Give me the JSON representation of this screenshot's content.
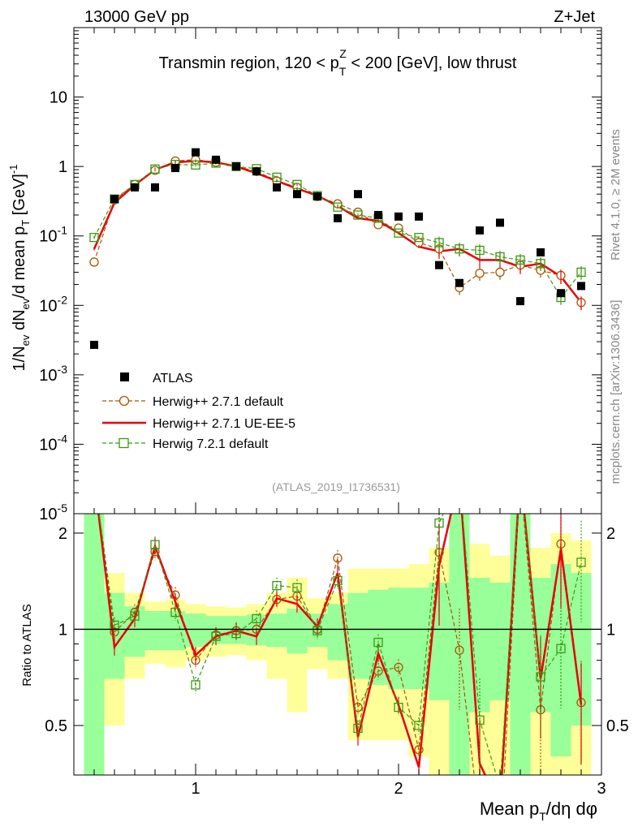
{
  "header": {
    "energy": "13000 GeV pp",
    "process": "Z+Jet"
  },
  "side_labels": {
    "rivet": "Rivet 4.1.0, ≥ 2M events",
    "source": "mcplots.cern.ch [arXiv:1306.3436]"
  },
  "chart_data": [
    {
      "type": "scatter",
      "title": "Transmin region, 120 < p_T^Z < 200 [GeV], low thrust",
      "title_parts": {
        "pre": "Transmin region, 120 < p",
        "sub": "T",
        "sup": "Z",
        "post": " < 200 [GeV], low thrust"
      },
      "ylabel": "1/N_ev dN_ev/d mean p_T [GeV]^-1",
      "yscale": "log",
      "ylim": [
        1e-05,
        100
      ],
      "xlim": [
        0.4,
        3.0
      ],
      "x_ticks": [
        "1",
        "2",
        "3"
      ],
      "y_ticks": [
        "10^-5",
        "10^-4",
        "10^-3",
        "10^-2",
        "10^-1",
        "1",
        "10"
      ],
      "watermark": "(ATLAS_2019_I1736531)",
      "x": [
        0.5,
        0.6,
        0.7,
        0.8,
        0.9,
        1.0,
        1.1,
        1.2,
        1.3,
        1.4,
        1.5,
        1.6,
        1.7,
        1.8,
        1.9,
        2.0,
        2.1,
        2.2,
        2.3,
        2.4,
        2.5,
        2.6,
        2.7,
        2.8,
        2.9
      ],
      "series": [
        {
          "name": "ATLAS",
          "style": "filled-square",
          "color": "#000000",
          "values": [
            0.0027,
            0.34,
            0.5,
            0.5,
            0.95,
            1.6,
            1.25,
            1.0,
            0.85,
            0.5,
            0.4,
            0.37,
            0.18,
            0.4,
            0.2,
            0.19,
            0.19,
            0.038,
            0.021,
            0.12,
            0.155,
            0.0115,
            0.058,
            0.015,
            0.019
          ]
        },
        {
          "name": "Herwig++ 2.7.1 default",
          "style": "open-circle-dashed",
          "color": "#aa5500",
          "values": [
            0.042,
            0.33,
            0.55,
            0.88,
            1.2,
            1.25,
            1.15,
            1.0,
            0.85,
            0.62,
            0.5,
            0.37,
            0.29,
            0.22,
            0.145,
            0.13,
            0.08,
            0.065,
            0.018,
            0.029,
            0.03,
            0.038,
            0.032,
            0.027,
            0.011
          ]
        },
        {
          "name": "Herwig++ 2.7.1 UE-EE-5",
          "style": "solid-line",
          "color": "#e8000b",
          "values": [
            0.065,
            0.3,
            0.54,
            0.9,
            1.15,
            1.2,
            1.15,
            1.0,
            0.8,
            0.62,
            0.48,
            0.38,
            0.27,
            0.18,
            0.165,
            0.11,
            0.07,
            0.06,
            0.065,
            0.045,
            0.045,
            0.036,
            0.04,
            0.026,
            0.011
          ]
        },
        {
          "name": "Herwig 7.2.1 default",
          "style": "open-square-dashed",
          "color": "#3a9a10",
          "values": [
            0.095,
            0.34,
            0.55,
            0.92,
            1.07,
            1.05,
            1.12,
            1.0,
            0.93,
            0.7,
            0.55,
            0.38,
            0.26,
            0.2,
            0.18,
            0.11,
            0.095,
            0.08,
            0.065,
            0.062,
            0.05,
            0.045,
            0.04,
            0.013,
            0.03
          ]
        }
      ]
    },
    {
      "type": "line",
      "ylabel": "Ratio to ATLAS",
      "xlabel": "Mean p_T/dη dφ",
      "xlabel_parts": {
        "pre": "Mean p",
        "sub": "T",
        "post": "/dη dφ"
      },
      "ylim": [
        0.35,
        2.3
      ],
      "y_ticks": [
        "0.5",
        "1",
        "2"
      ],
      "reference": 1.0,
      "x": [
        0.5,
        0.6,
        0.7,
        0.8,
        0.9,
        1.0,
        1.1,
        1.2,
        1.3,
        1.4,
        1.5,
        1.6,
        1.7,
        1.8,
        1.9,
        2.0,
        2.1,
        2.2,
        2.3,
        2.4,
        2.5,
        2.6,
        2.7,
        2.8,
        2.9
      ],
      "bands": {
        "green_half_width": [
          2.0,
          0.3,
          0.18,
          0.14,
          0.14,
          0.12,
          0.1,
          0.1,
          0.11,
          0.12,
          0.16,
          0.12,
          0.2,
          0.3,
          0.33,
          0.35,
          0.35,
          0.4,
          2.0,
          0.45,
          0.4,
          2.0,
          0.45,
          0.6,
          0.5
        ],
        "yellow_half_width": [
          2.0,
          0.5,
          0.3,
          0.22,
          0.24,
          0.2,
          0.18,
          0.17,
          0.2,
          0.3,
          0.45,
          0.25,
          0.3,
          0.55,
          0.55,
          0.55,
          0.6,
          0.8,
          2.0,
          0.85,
          0.7,
          2.0,
          0.8,
          1.0,
          0.9
        ]
      },
      "series": [
        {
          "name": "Herwig++ 2.7.1 default",
          "color": "#aa5500",
          "values": [
            3.0,
            0.98,
            1.13,
            1.75,
            1.28,
            0.8,
            0.96,
            0.99,
            1.0,
            1.24,
            1.27,
            1.0,
            1.67,
            0.57,
            0.74,
            0.76,
            0.42,
            1.74,
            0.86,
            0.25,
            0.2,
            3.0,
            0.56,
            1.85,
            0.59
          ]
        },
        {
          "name": "Herwig++ 2.7.1 UE-EE-5",
          "color": "#e8000b",
          "values": [
            3.0,
            0.88,
            1.08,
            1.82,
            1.22,
            0.83,
            0.95,
            0.99,
            0.95,
            1.25,
            1.2,
            1.02,
            1.5,
            0.46,
            0.84,
            0.58,
            0.37,
            1.58,
            3.0,
            0.38,
            0.28,
            3.1,
            0.7,
            1.78,
            0.58
          ]
        },
        {
          "name": "Herwig 7.2.1 default",
          "color": "#3a9a10",
          "values": [
            3.0,
            1.03,
            1.1,
            1.84,
            1.13,
            0.67,
            0.95,
            0.97,
            1.08,
            1.37,
            1.35,
            0.99,
            1.42,
            0.49,
            0.91,
            0.57,
            0.5,
            2.15,
            3.0,
            0.52,
            0.32,
            3.0,
            0.71,
            0.87,
            1.62
          ]
        }
      ]
    }
  ]
}
